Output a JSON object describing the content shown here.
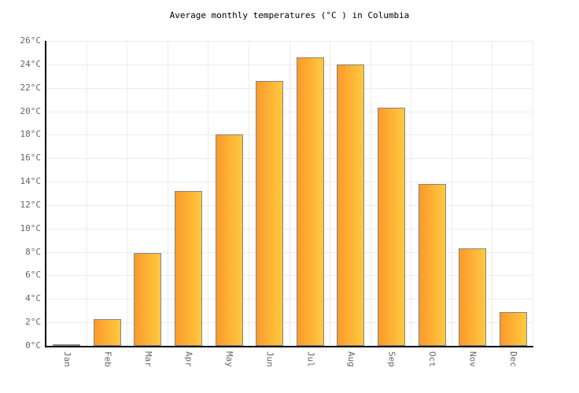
{
  "chart_data": {
    "type": "bar",
    "title": "Average monthly temperatures (°C ) in Columbia",
    "categories": [
      "Jan",
      "Feb",
      "Mar",
      "Apr",
      "May",
      "Jun",
      "Jul",
      "Aug",
      "Sep",
      "Oct",
      "Nov",
      "Dec"
    ],
    "values": [
      0.1,
      2.3,
      7.9,
      13.2,
      18.0,
      22.6,
      24.6,
      24.0,
      20.3,
      13.8,
      8.3,
      2.9
    ],
    "unit": "°C",
    "xlabel": "",
    "ylabel": "",
    "ylim": [
      0,
      26
    ],
    "ytick_step": 2,
    "ytick_labels": [
      "0°C",
      "2°C",
      "4°C",
      "6°C",
      "8°C",
      "10°C",
      "12°C",
      "14°C",
      "16°C",
      "18°C",
      "20°C",
      "22°C",
      "24°C",
      "26°C"
    ],
    "grid": true,
    "legend": "none",
    "colors": {
      "bar_gradient_left": "#fa9a2b",
      "bar_gradient_right": "#ffc93f",
      "bar_border": "#858585",
      "gridline": "#ececec",
      "axis": "#000000",
      "tick_label": "#666666",
      "title_text": "#000000",
      "background": "#ffffff"
    }
  }
}
